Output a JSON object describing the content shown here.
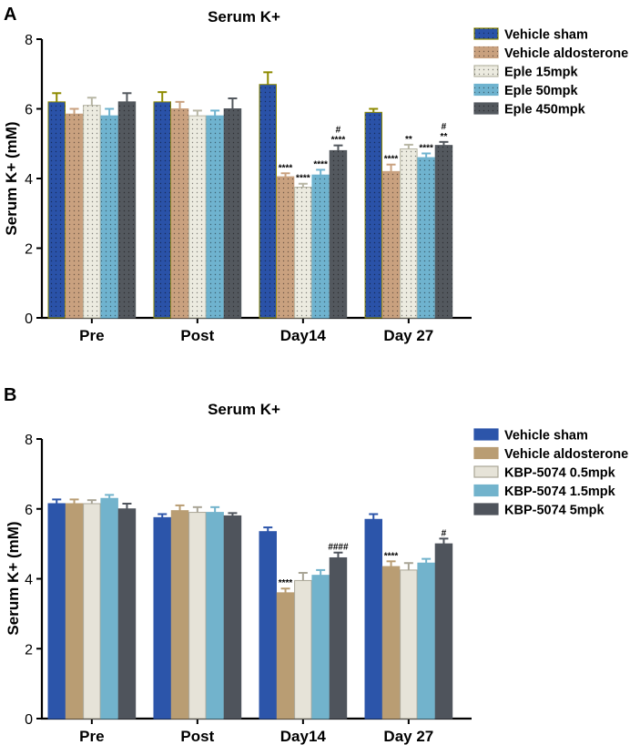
{
  "chart_data": [
    {
      "panel_label": "A",
      "type": "bar",
      "title": "Serum K+",
      "xlabel": "",
      "ylabel": "Serum K+ (mM)",
      "ylim": [
        0,
        8
      ],
      "yticks": [
        "0",
        "2",
        "4",
        "6",
        "8"
      ],
      "categories": [
        "Pre",
        "Post",
        "Day14",
        "Day 27"
      ],
      "grid": false,
      "legend_position": "top-right",
      "series": [
        {
          "name": "Vehicle sham",
          "color": "#2a52a8",
          "edge": "#8e8a00",
          "pattern": "dots",
          "values": [
            6.2,
            6.2,
            6.7,
            5.9
          ],
          "errors": [
            0.25,
            0.28,
            0.35,
            0.1
          ],
          "annotations": [
            "",
            "",
            "",
            ""
          ]
        },
        {
          "name": "Vehicle aldosterone",
          "color": "#c9a17f",
          "edge": "#c9a17f",
          "pattern": "dots",
          "values": [
            5.85,
            6.0,
            4.05,
            4.2
          ],
          "errors": [
            0.15,
            0.2,
            0.1,
            0.2
          ],
          "annotations": [
            "",
            "",
            "****",
            "****"
          ]
        },
        {
          "name": "Eple 15mpk",
          "color": "#ecebe0",
          "edge": "#b8b6a4",
          "pattern": "dots",
          "values": [
            6.1,
            5.8,
            3.75,
            4.85
          ],
          "errors": [
            0.22,
            0.15,
            0.1,
            0.12
          ],
          "annotations": [
            "",
            "",
            "****",
            "**"
          ]
        },
        {
          "name": "Eple 50mpk",
          "color": "#6fb3cf",
          "edge": "#6fb3cf",
          "pattern": "dots",
          "values": [
            5.8,
            5.8,
            4.1,
            4.6
          ],
          "errors": [
            0.2,
            0.15,
            0.15,
            0.12
          ],
          "annotations": [
            "",
            "",
            "****",
            "****"
          ]
        },
        {
          "name": "Eple 450mpk",
          "color": "#53585e",
          "edge": "#53585e",
          "pattern": "dots",
          "values": [
            6.2,
            6.0,
            4.8,
            4.95
          ],
          "errors": [
            0.25,
            0.3,
            0.15,
            0.1
          ],
          "annotations": [
            "",
            "",
            "#\n****",
            "#\n**"
          ]
        }
      ]
    },
    {
      "panel_label": "B",
      "type": "bar",
      "title": "Serum K+",
      "xlabel": "",
      "ylabel": "Serum K+ (mM)",
      "ylim": [
        0,
        8
      ],
      "yticks": [
        "0",
        "2",
        "4",
        "6",
        "8"
      ],
      "categories": [
        "Pre",
        "Post",
        "Day14",
        "Day 27"
      ],
      "grid": false,
      "legend_position": "top-right",
      "series": [
        {
          "name": "Vehicle sham",
          "color": "#2c55aa",
          "edge": "#2c55aa",
          "pattern": "none",
          "values": [
            6.15,
            5.75,
            5.35,
            5.7
          ],
          "errors": [
            0.12,
            0.1,
            0.12,
            0.15
          ],
          "annotations": [
            "",
            "",
            "",
            ""
          ]
        },
        {
          "name": "Vehicle aldosterone",
          "color": "#b99d73",
          "edge": "#b99d73",
          "pattern": "none",
          "values": [
            6.15,
            5.95,
            3.6,
            4.35
          ],
          "errors": [
            0.12,
            0.15,
            0.12,
            0.15
          ],
          "annotations": [
            "",
            "",
            "****",
            "****"
          ]
        },
        {
          "name": "KBP-5074 0.5mpk",
          "color": "#e6e3d8",
          "edge": "#a9a596",
          "pattern": "none",
          "values": [
            6.15,
            5.9,
            3.95,
            4.25
          ],
          "errors": [
            0.1,
            0.15,
            0.22,
            0.2
          ],
          "annotations": [
            "",
            "",
            "",
            ""
          ]
        },
        {
          "name": "KBP-5074 1.5mpk",
          "color": "#72b3cc",
          "edge": "#72b3cc",
          "pattern": "none",
          "values": [
            6.3,
            5.9,
            4.1,
            4.45
          ],
          "errors": [
            0.1,
            0.15,
            0.15,
            0.12
          ],
          "annotations": [
            "",
            "",
            "",
            ""
          ]
        },
        {
          "name": "KBP-5074 5mpk",
          "color": "#4f545c",
          "edge": "#4f545c",
          "pattern": "none",
          "values": [
            6.0,
            5.8,
            4.6,
            5.0
          ],
          "errors": [
            0.15,
            0.08,
            0.15,
            0.15
          ],
          "annotations": [
            "",
            "",
            "####",
            "#"
          ]
        }
      ]
    }
  ]
}
